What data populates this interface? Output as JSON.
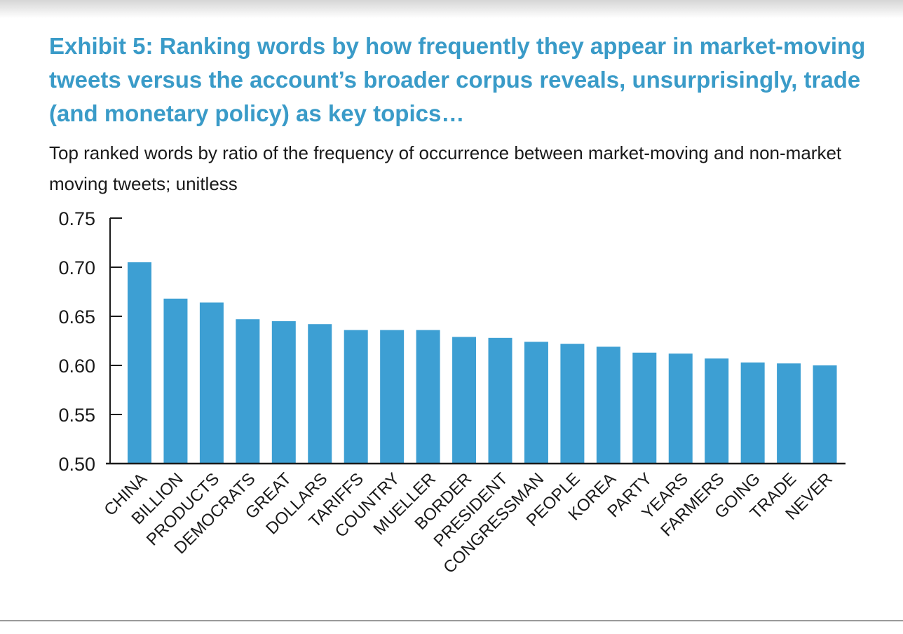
{
  "title": "Exhibit 5: Ranking words by how frequently they appear in market-moving tweets versus the account’s broader corpus reveals, unsurprisingly, trade (and monetary policy) as key topics…",
  "subtitle": "Top ranked words by ratio of the frequency of occurrence between market-moving and non-market moving tweets; unitless",
  "colors": {
    "bar": "#3d9fd3",
    "title": "#3a9bc8",
    "axis": "#1a1a1a"
  },
  "chart_data": {
    "type": "bar",
    "title": "Exhibit 5: Ranking words by how frequently they appear in market-moving tweets versus the account’s broader corpus reveals, unsurprisingly, trade (and monetary policy) as key topics…",
    "xlabel": "",
    "ylabel": "",
    "ylim": [
      0.5,
      0.75
    ],
    "yticks": [
      "0.50",
      "0.55",
      "0.60",
      "0.65",
      "0.70",
      "0.75"
    ],
    "grid": false,
    "categories": [
      "CHINA",
      "BILLION",
      "PRODUCTS",
      "DEMOCRATS",
      "GREAT",
      "DOLLARS",
      "TARIFFS",
      "COUNTRY",
      "MUELLER",
      "BORDER",
      "PRESIDENT",
      "CONGRESSMAN",
      "PEOPLE",
      "KOREA",
      "PARTY",
      "YEARS",
      "FARMERS",
      "GOING",
      "TRADE",
      "NEVER"
    ],
    "values": [
      0.705,
      0.668,
      0.664,
      0.647,
      0.645,
      0.642,
      0.636,
      0.636,
      0.636,
      0.629,
      0.628,
      0.624,
      0.622,
      0.619,
      0.613,
      0.612,
      0.607,
      0.603,
      0.602,
      0.6
    ]
  }
}
